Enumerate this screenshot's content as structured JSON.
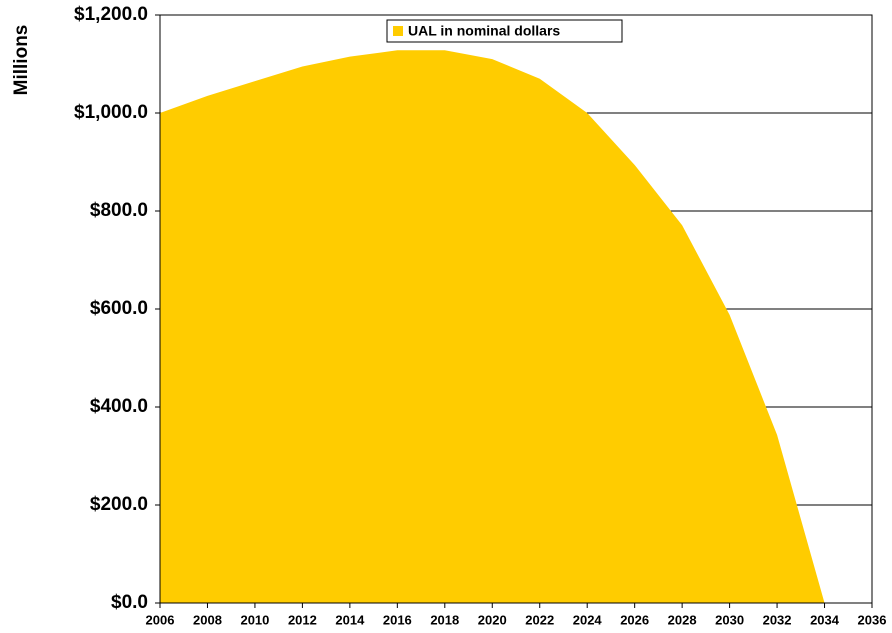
{
  "chart_data": {
    "type": "area",
    "y_axis_label": "Millions",
    "x": [
      2006,
      2008,
      2010,
      2012,
      2014,
      2016,
      2018,
      2020,
      2022,
      2024,
      2026,
      2028,
      2030,
      2032,
      2034
    ],
    "series": [
      {
        "name": "UAL in nominal dollars",
        "color": "#ffcc00",
        "values": [
          1000,
          1035,
          1065,
          1095,
          1115,
          1128,
          1128,
          1110,
          1070,
          1000,
          894,
          771,
          588,
          343,
          0
        ]
      }
    ],
    "xlim": [
      2006,
      2036
    ],
    "xticks": [
      2006,
      2008,
      2010,
      2012,
      2014,
      2016,
      2018,
      2020,
      2022,
      2024,
      2026,
      2028,
      2030,
      2032,
      2034,
      2036
    ],
    "ylim": [
      0,
      1200
    ],
    "yticks": [
      {
        "value": 0,
        "label": "$0.0"
      },
      {
        "value": 200,
        "label": "$200.0"
      },
      {
        "value": 400,
        "label": "$400.0"
      },
      {
        "value": 600,
        "label": "$600.0"
      },
      {
        "value": 800,
        "label": "$800.0"
      },
      {
        "value": 1000,
        "label": "$1,000.0"
      },
      {
        "value": 1200,
        "label": "$1,200.0"
      }
    ],
    "grid": true
  }
}
